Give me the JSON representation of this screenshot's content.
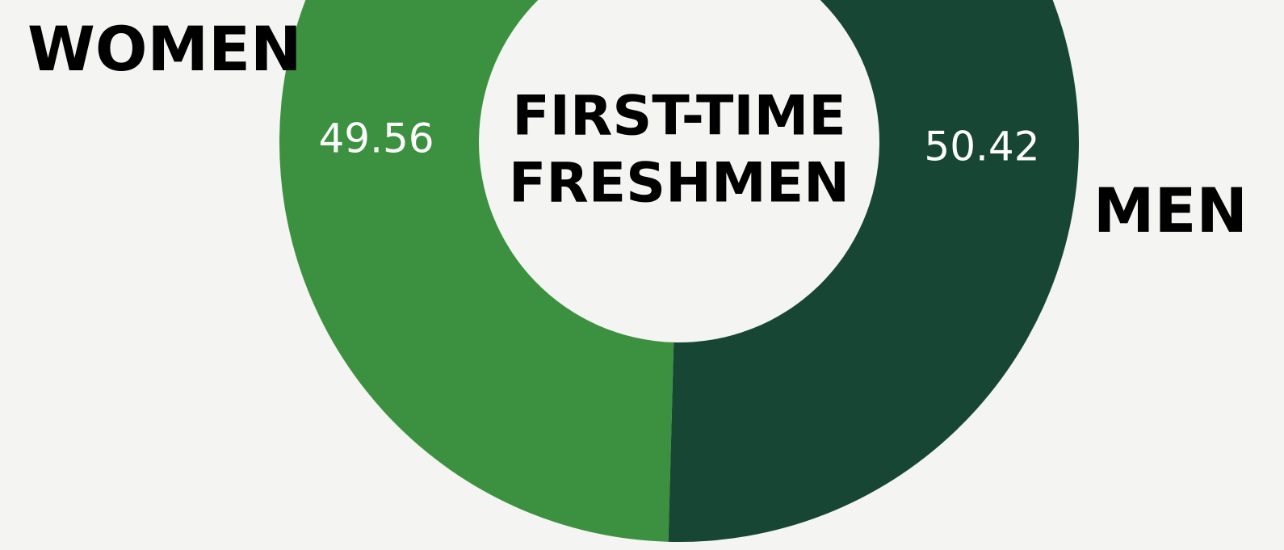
{
  "chart_data": {
    "type": "donut",
    "title": [
      "FIRST-TIME",
      "FRESHMEN"
    ],
    "categories": [
      "WOMEN",
      "MEN"
    ],
    "values": [
      49.56,
      50.42
    ],
    "colors": [
      "#3c9140",
      "#174634"
    ]
  }
}
